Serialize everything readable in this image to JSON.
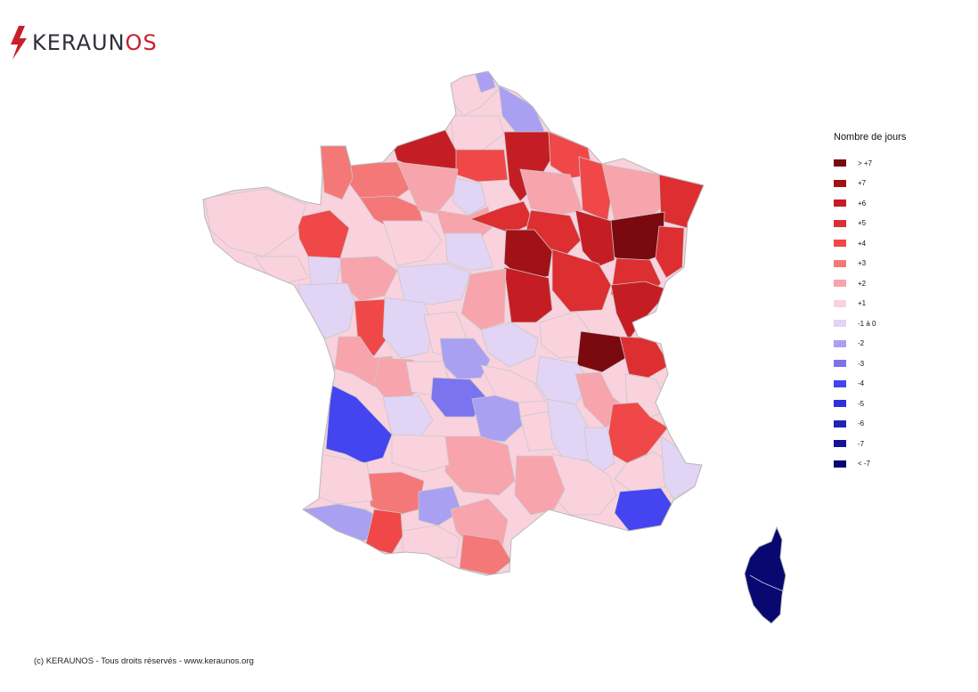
{
  "brand": {
    "name_main": "KERAUN",
    "name_tail": "OS",
    "bolt_color": "#c8202a"
  },
  "legend": {
    "title": "Nombre de jours",
    "items": [
      {
        "label": "> +7",
        "color": "#7a0a10"
      },
      {
        "label": "+7",
        "color": "#a11218"
      },
      {
        "label": "+6",
        "color": "#c41e24"
      },
      {
        "label": "+5",
        "color": "#dd2e32"
      },
      {
        "label": "+4",
        "color": "#f04848"
      },
      {
        "label": "+3",
        "color": "#f57878"
      },
      {
        "label": "+2",
        "color": "#f7a4ac"
      },
      {
        "label": "+1",
        "color": "#f9d2de"
      },
      {
        "label": "-1 à 0",
        "color": "#e2d4f4"
      },
      {
        "label": "-2",
        "color": "#a9a0f2"
      },
      {
        "label": "-3",
        "color": "#7c74ee"
      },
      {
        "label": "-4",
        "color": "#4444f0"
      },
      {
        "label": "-5",
        "color": "#3030d8"
      },
      {
        "label": "-6",
        "color": "#2222b8"
      },
      {
        "label": "-7",
        "color": "#141496"
      },
      {
        "label": "< -7",
        "color": "#080870"
      }
    ]
  },
  "footer": "(c) KERAUNOS - Tous droits réservés - www.keraunos.org"
}
